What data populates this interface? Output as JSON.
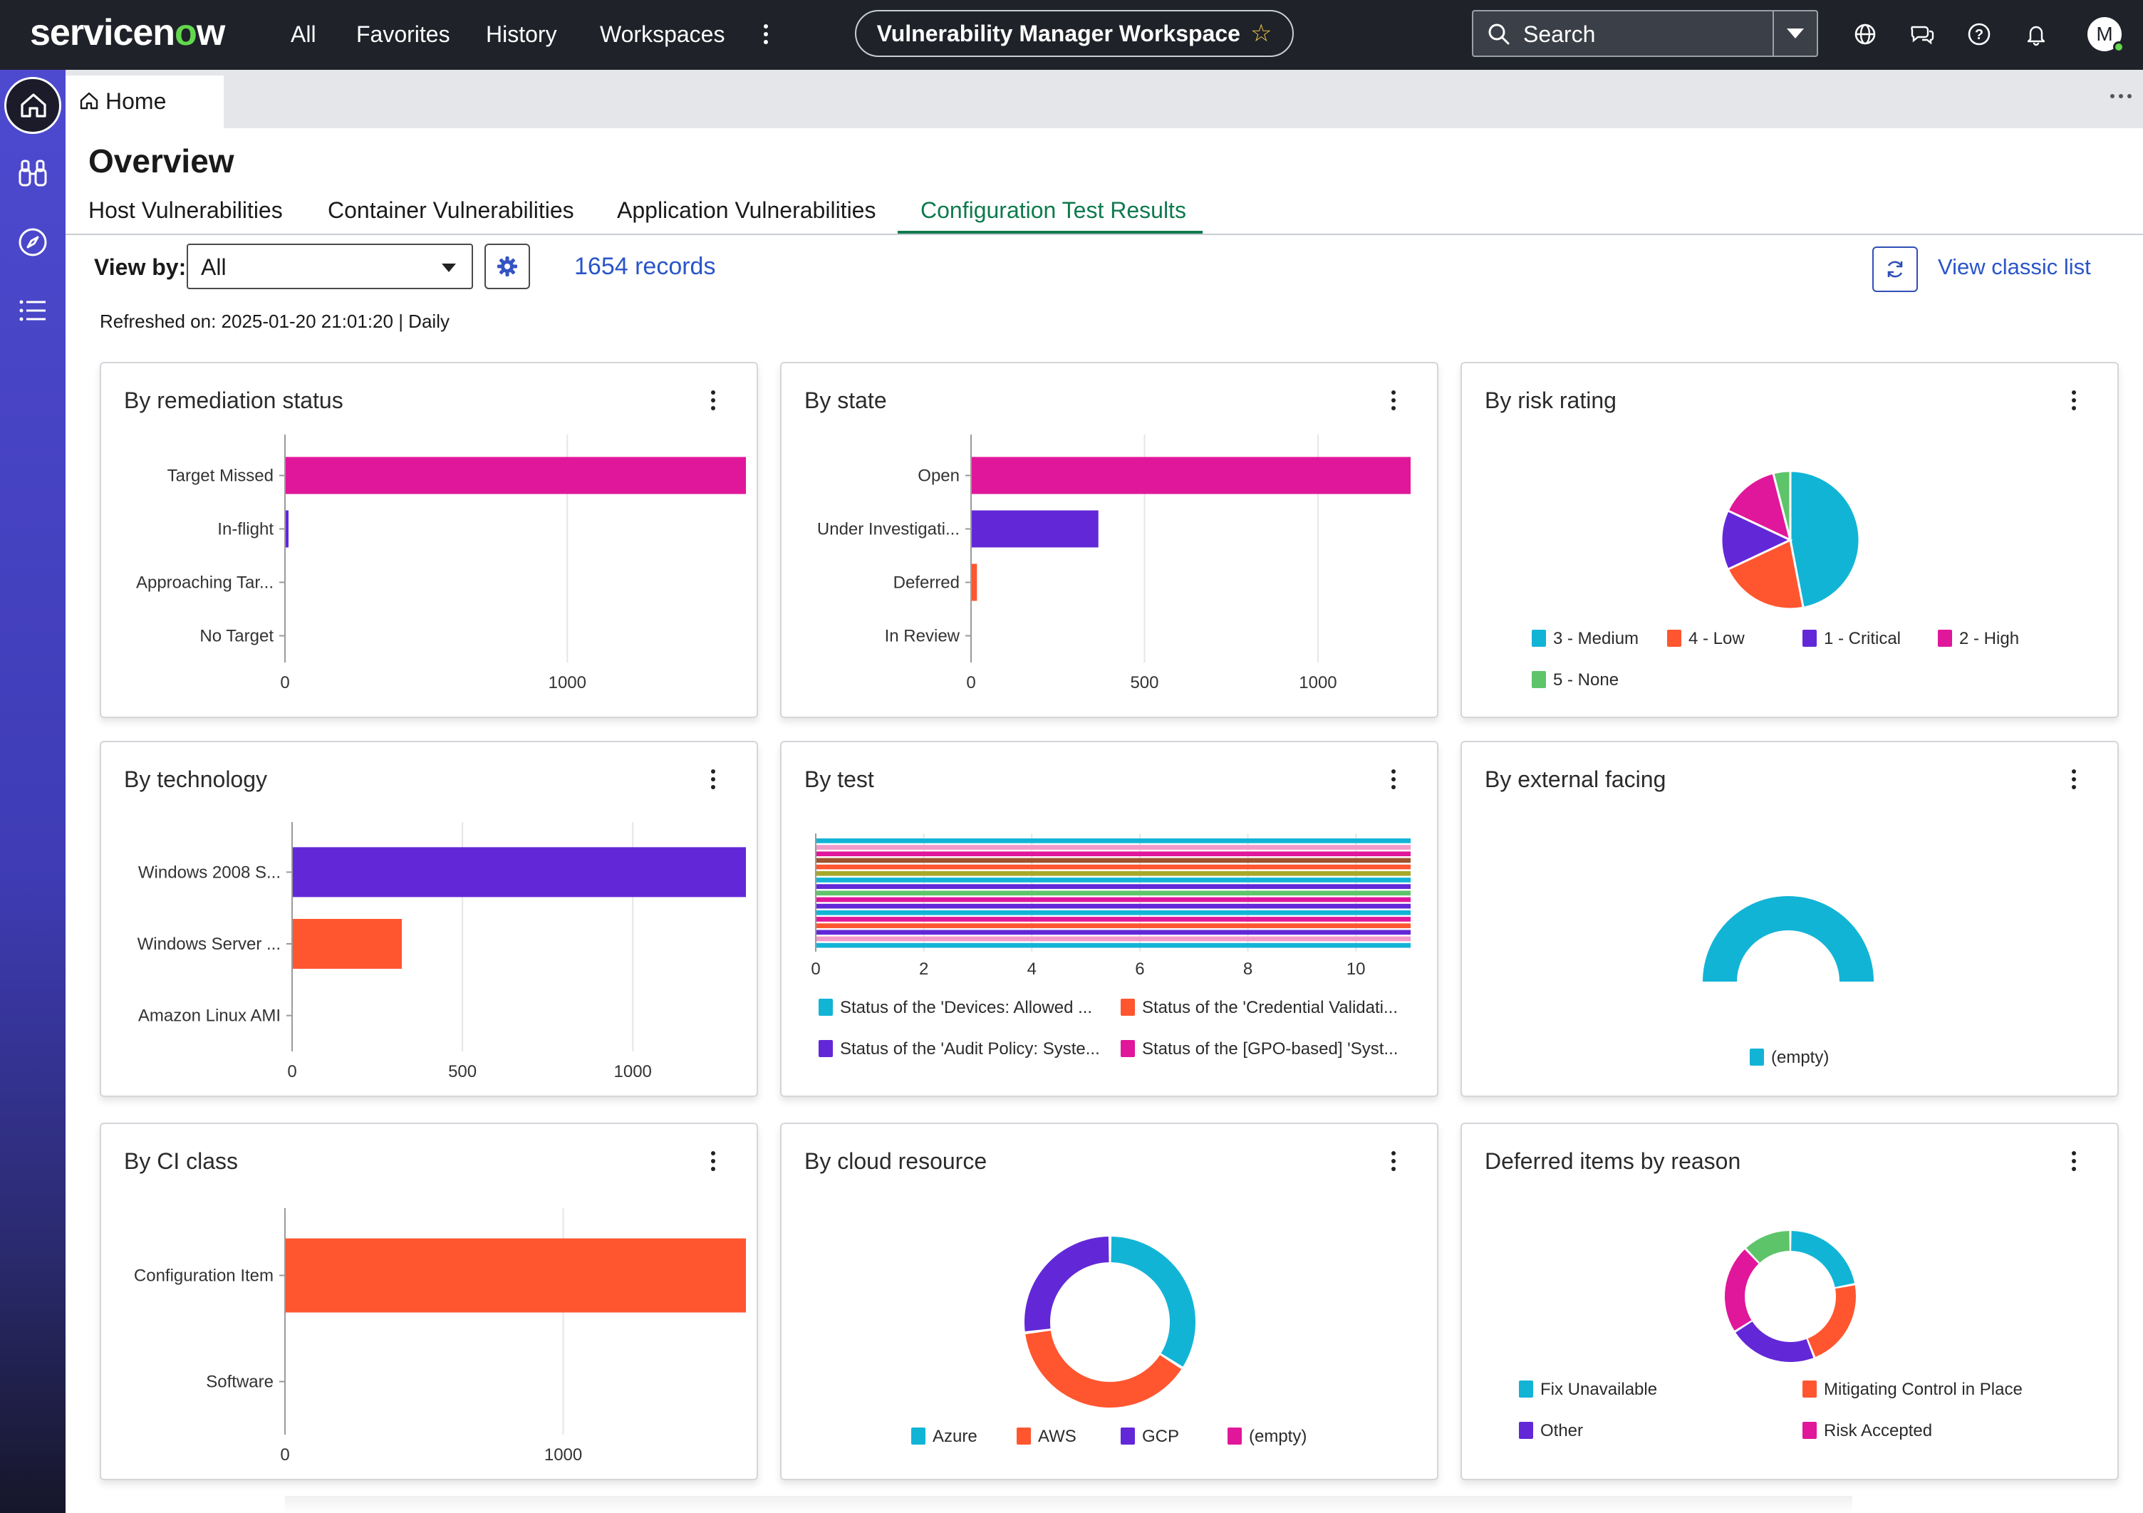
{
  "nav": {
    "brand": {
      "a": "servicen",
      "o": "o",
      "b": "w"
    },
    "links": [
      "All",
      "Favorites",
      "History",
      "Workspaces"
    ],
    "workspace_title": "Vulnerability Manager Workspace",
    "search_label": "Search",
    "avatar_initial": "M"
  },
  "tabs": {
    "home_label": "Home"
  },
  "page": {
    "title": "Overview",
    "subtabs": [
      "Host Vulnerabilities",
      "Container Vulnerabilities",
      "Application Vulnerabilities",
      "Configuration Test Results"
    ],
    "active_subtab": "Configuration Test Results",
    "view_by_label": "View by:",
    "view_by_value": "All",
    "records": "1654 records",
    "view_classic": "View classic list",
    "refreshed": "Refreshed on: 2025-01-20 21:01:20 | Daily"
  },
  "colors": {
    "cyan": "#12b4d6",
    "orange": "#ff5630",
    "purple": "#6228d8",
    "magenta": "#e0179a",
    "green": "#5ec46a",
    "pink": "#f29ac9",
    "olive": "#a8a82a",
    "brown": "#a0522d",
    "active_tab": "#0f7a4f",
    "link": "#2a55c9"
  },
  "cards": {
    "remediation": {
      "title": "By remediation status",
      "chart_data": {
        "type": "bar",
        "orientation": "horizontal",
        "categories": [
          "Target Missed",
          "In-flight",
          "Approaching Tar...",
          "No Target"
        ],
        "values": [
          1630,
          10,
          0,
          0
        ],
        "colors": [
          "magenta",
          "purple",
          "purple",
          "purple"
        ],
        "xticks": [
          0,
          1000
        ],
        "xlim": [
          0,
          1630
        ]
      }
    },
    "state": {
      "title": "By state",
      "chart_data": {
        "type": "bar",
        "orientation": "horizontal",
        "categories": [
          "Open",
          "Under Investigati...",
          "Deferred",
          "In Review"
        ],
        "values": [
          1265,
          365,
          15,
          0
        ],
        "colors": [
          "magenta",
          "purple",
          "orange",
          "purple"
        ],
        "xticks": [
          0,
          500,
          1000
        ],
        "xlim": [
          0,
          1265
        ]
      }
    },
    "risk": {
      "title": "By risk rating",
      "chart_data": {
        "type": "pie",
        "labels": [
          "3 - Medium",
          "4 - Low",
          "1 - Critical",
          "2 - High",
          "5 - None"
        ],
        "values": [
          47,
          21,
          14,
          14,
          4
        ],
        "colors": [
          "cyan",
          "orange",
          "purple",
          "magenta",
          "green"
        ]
      }
    },
    "technology": {
      "title": "By technology",
      "chart_data": {
        "type": "bar",
        "orientation": "horizontal",
        "categories": [
          "Windows 2008 S...",
          "Windows Server ...",
          "Amazon Linux AMI"
        ],
        "values": [
          1330,
          320,
          0
        ],
        "colors": [
          "purple",
          "orange",
          "purple"
        ],
        "xticks": [
          0,
          500,
          1000
        ],
        "xlim": [
          0,
          1330
        ]
      }
    },
    "test": {
      "title": "By test",
      "chart_data": {
        "type": "bar",
        "orientation": "horizontal",
        "series_count": 17,
        "values": [
          11,
          11,
          11,
          11,
          11,
          11,
          11,
          11,
          11,
          11,
          11,
          11,
          11,
          11,
          11,
          11,
          11
        ],
        "colors": [
          "cyan",
          "pink",
          "magenta",
          "brown",
          "orange",
          "olive",
          "cyan",
          "purple",
          "green",
          "magenta",
          "purple",
          "cyan",
          "magenta",
          "orange",
          "purple",
          "pink",
          "cyan"
        ],
        "xticks": [
          0,
          2,
          4,
          6,
          8,
          10
        ],
        "xlim": [
          0,
          11
        ],
        "legend": [
          {
            "label": "Status of the 'Devices: Allowed ...",
            "color": "cyan"
          },
          {
            "label": "Status of the 'Credential Validati...",
            "color": "orange"
          },
          {
            "label": "Status of the 'Audit Policy: Syste...",
            "color": "purple"
          },
          {
            "label": "Status of the [GPO-based] 'Syst...",
            "color": "magenta"
          }
        ]
      }
    },
    "external": {
      "title": "By external facing",
      "chart_data": {
        "type": "pie",
        "style": "semi-donut",
        "labels": [
          "(empty)"
        ],
        "values": [
          100
        ],
        "colors": [
          "cyan"
        ]
      }
    },
    "ci": {
      "title": "By CI class",
      "chart_data": {
        "type": "bar",
        "orientation": "horizontal",
        "categories": [
          "Configuration Item",
          "Software"
        ],
        "values": [
          1654,
          0
        ],
        "colors": [
          "orange",
          "orange"
        ],
        "xticks": [
          0,
          1000
        ],
        "xlim": [
          0,
          1654
        ]
      }
    },
    "cloud": {
      "title": "By cloud resource",
      "chart_data": {
        "type": "pie",
        "style": "donut",
        "labels": [
          "Azure",
          "AWS",
          "GCP",
          "(empty)"
        ],
        "values": [
          34,
          39,
          27,
          0
        ],
        "colors": [
          "cyan",
          "orange",
          "purple",
          "magenta"
        ]
      }
    },
    "deferred": {
      "title": "Deferred items by reason",
      "chart_data": {
        "type": "pie",
        "style": "donut",
        "labels": [
          "Fix Unavailable",
          "Mitigating Control in Place",
          "Other",
          "Risk Accepted"
        ],
        "values": [
          22,
          22,
          22,
          22
        ],
        "colors": [
          "cyan",
          "orange",
          "purple",
          "magenta"
        ],
        "extra_slice": {
          "value": 12,
          "color": "green"
        }
      }
    }
  }
}
